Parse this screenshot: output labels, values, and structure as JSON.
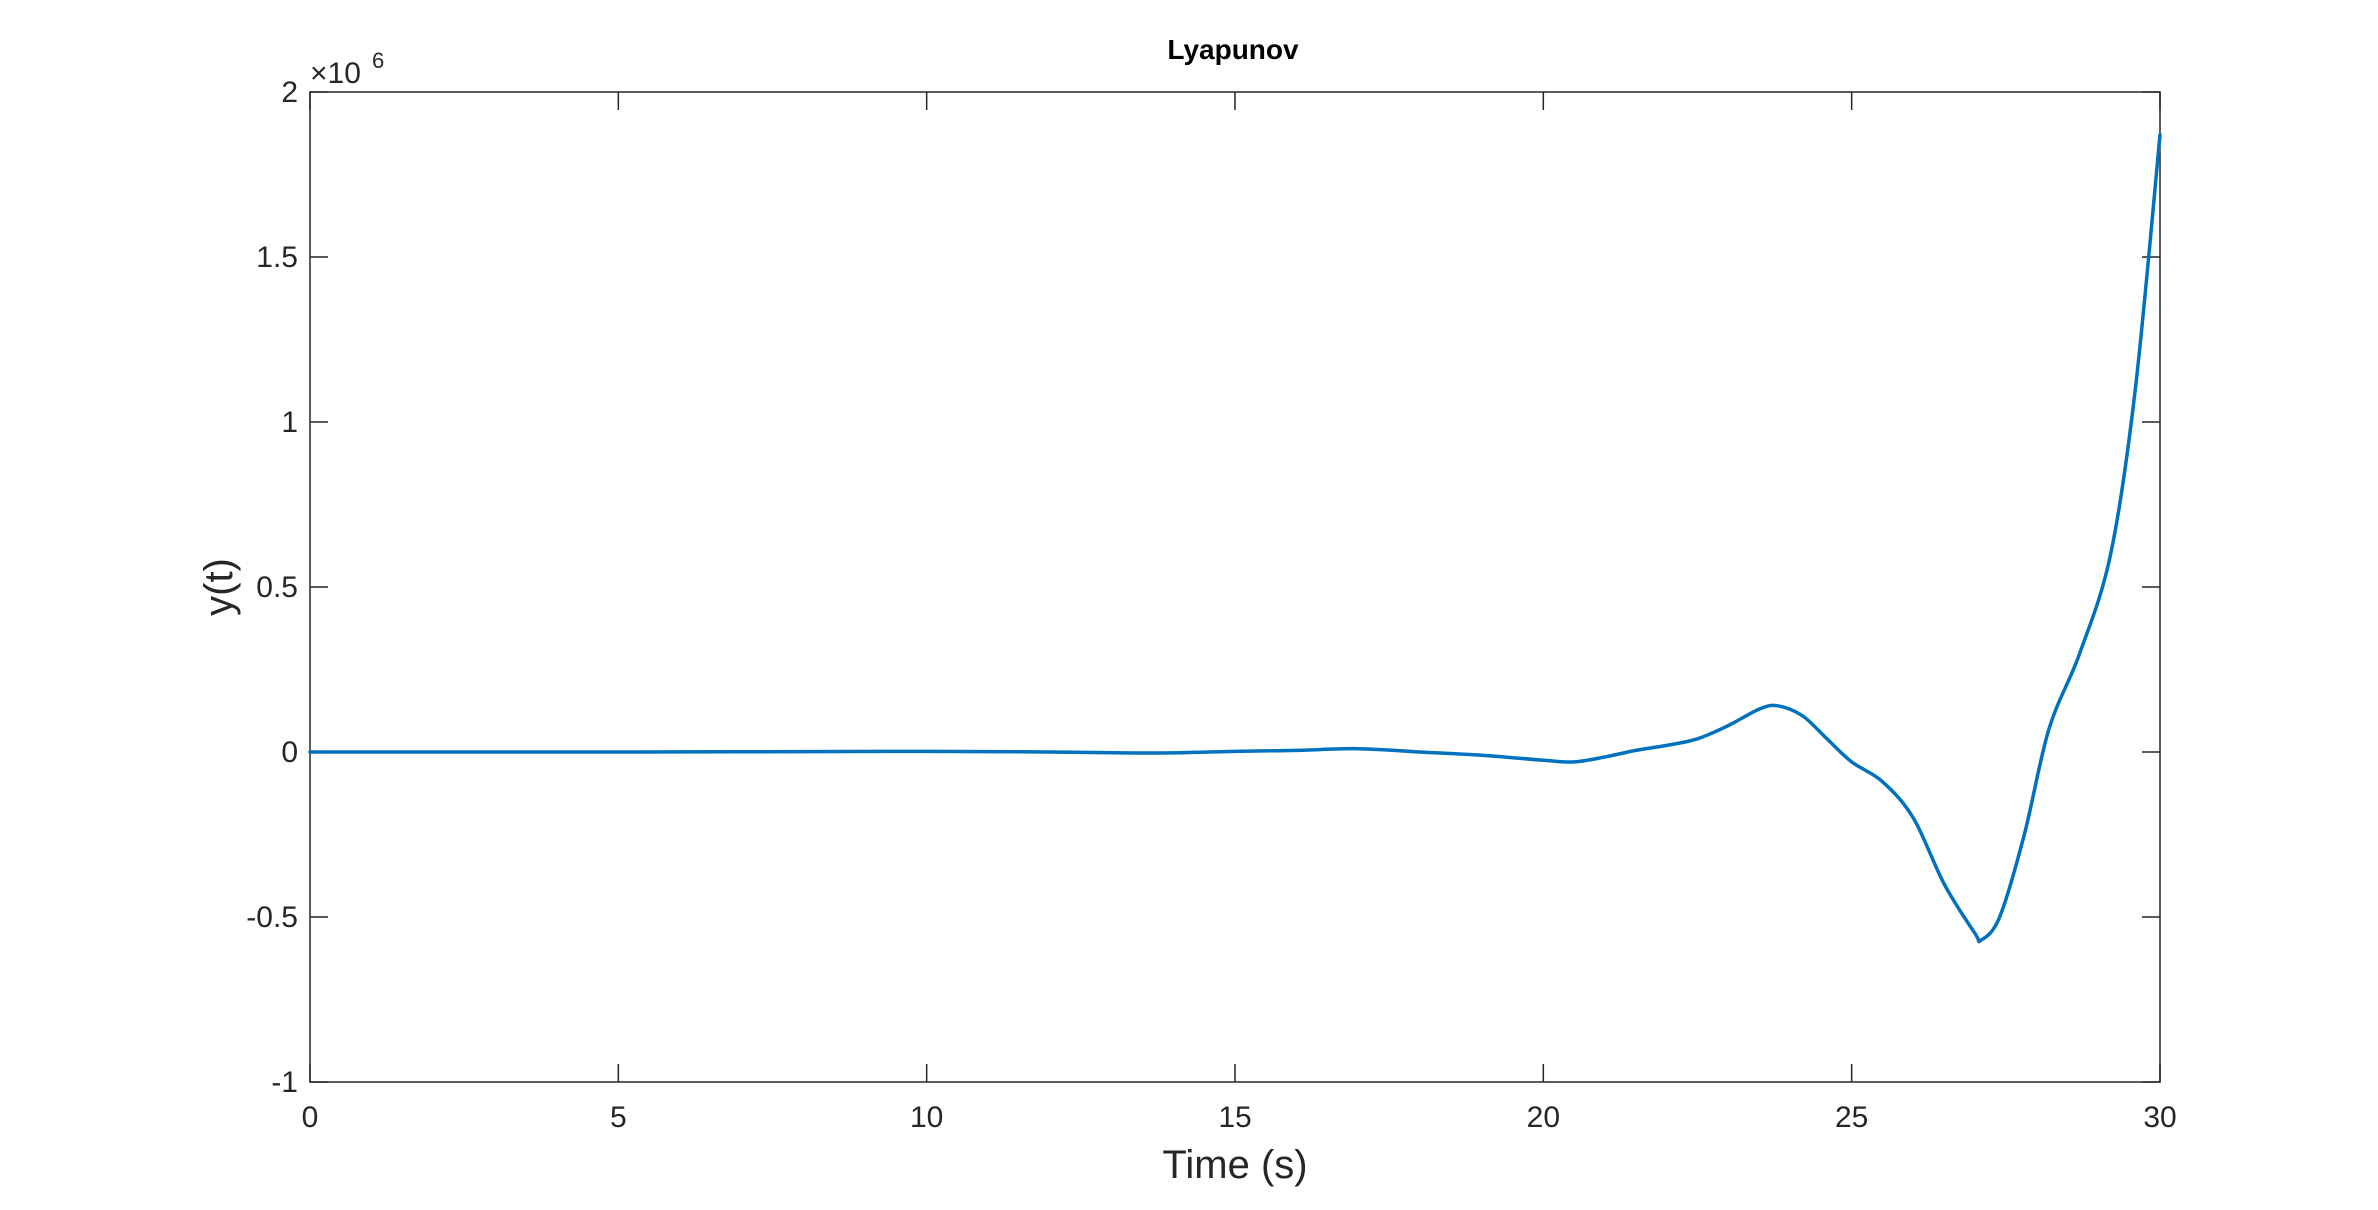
{
  "chart_data": {
    "type": "line",
    "title": "Lyapunov",
    "xlabel": "Time (s)",
    "ylabel": "y(t)",
    "xlim": [
      0,
      30
    ],
    "ylim": [
      -1,
      2
    ],
    "y_multiplier_label": "×10",
    "y_multiplier_exponent": "6",
    "xticks": [
      "0",
      "5",
      "10",
      "15",
      "20",
      "25",
      "30"
    ],
    "yticks": [
      "-1",
      "-0.5",
      "0",
      "0.5",
      "1",
      "1.5",
      "2"
    ],
    "grid": false,
    "line_color": "#0072BD",
    "series": [
      {
        "x": [
          0,
          5,
          10,
          12,
          13.7,
          15,
          16,
          17,
          18,
          19,
          20,
          20.5,
          21,
          21.5,
          22,
          22.5,
          23,
          23.5,
          23.8,
          24.2,
          24.6,
          25,
          25.5,
          26,
          26.5,
          27,
          27.1,
          27.4,
          27.8,
          28.2,
          28.7,
          29.2,
          29.6,
          30
        ],
        "y": [
          0,
          0,
          0.002,
          0.0,
          -0.003,
          0.002,
          0.005,
          0.01,
          0.0,
          -0.01,
          -0.025,
          -0.03,
          -0.015,
          0.005,
          0.02,
          0.04,
          0.08,
          0.13,
          0.14,
          0.11,
          0.04,
          -0.03,
          -0.09,
          -0.2,
          -0.4,
          -0.55,
          -0.57,
          -0.5,
          -0.25,
          0.07,
          0.3,
          0.6,
          1.1,
          1.87
        ]
      }
    ]
  }
}
